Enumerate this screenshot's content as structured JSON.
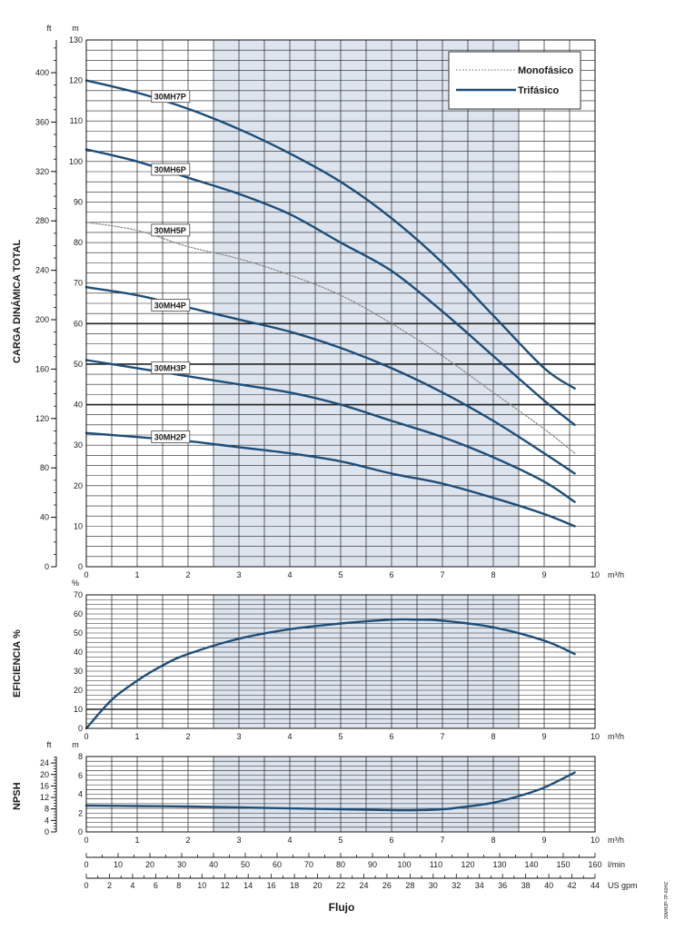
{
  "chart_data": [
    {
      "type": "line",
      "panel": "head",
      "ylabel": "CARGA DINÁMICA TOTAL",
      "y_unit_m": "m",
      "y_unit_ft": "ft",
      "x_unit": "m³/h",
      "xlim": [
        0,
        10
      ],
      "ylim": [
        0,
        130
      ],
      "x_ticks": [
        "0",
        "1",
        "2",
        "3",
        "4",
        "5",
        "6",
        "7",
        "8",
        "9",
        "10"
      ],
      "y_ticks_m": [
        "0",
        "10",
        "20",
        "30",
        "40",
        "50",
        "60",
        "70",
        "80",
        "90",
        "100",
        "110",
        "120",
        "130"
      ],
      "y_ticks_ft": [
        "0",
        "40",
        "80",
        "120",
        "160",
        "200",
        "240",
        "280",
        "320",
        "360",
        "400"
      ],
      "shaded_x_range": [
        2.5,
        8.5
      ],
      "grid": true,
      "legend": {
        "position": "top-right",
        "entries": [
          {
            "label": "Monofásico",
            "style": "dotted",
            "color": "#8a8a8a"
          },
          {
            "label": "Trifásico",
            "style": "solid",
            "color": "#1d4e79"
          }
        ]
      },
      "series": [
        {
          "name": "30MH7P",
          "style": "solid",
          "label_at": [
            1.3,
            115.5
          ],
          "x": [
            0,
            1,
            2,
            3,
            4,
            5,
            6,
            7,
            8,
            9,
            9.6
          ],
          "y": [
            120,
            117,
            113,
            108,
            102,
            95,
            86,
            75,
            62,
            49,
            44
          ]
        },
        {
          "name": "30MH6P",
          "style": "solid",
          "label_at": [
            1.3,
            97.5
          ],
          "x": [
            0,
            1,
            2,
            3,
            4,
            5,
            6,
            7,
            8,
            9,
            9.6
          ],
          "y": [
            103,
            100,
            96,
            92,
            87,
            80,
            73,
            63,
            52,
            41,
            35
          ]
        },
        {
          "name": "30MH5P",
          "style": "dotted",
          "label_at": [
            1.3,
            82.5
          ],
          "x": [
            0,
            1,
            2,
            3,
            4,
            5,
            6,
            7,
            8,
            9,
            9.6
          ],
          "y": [
            85,
            83,
            79,
            76,
            72,
            67,
            60,
            52,
            43,
            34,
            28
          ]
        },
        {
          "name": "30MH4P",
          "style": "solid",
          "label_at": [
            1.3,
            64
          ],
          "x": [
            0,
            1,
            2,
            3,
            4,
            5,
            6,
            7,
            8,
            9,
            9.6
          ],
          "y": [
            69,
            67,
            64,
            61,
            58,
            54,
            49,
            43,
            36,
            28,
            23
          ]
        },
        {
          "name": "30MH3P",
          "style": "solid",
          "label_at": [
            1.3,
            48.5
          ],
          "x": [
            0,
            1,
            2,
            3,
            4,
            5,
            6,
            7,
            8,
            9,
            9.6
          ],
          "y": [
            51,
            49,
            47,
            45,
            43,
            40,
            36,
            32,
            27,
            21,
            16
          ]
        },
        {
          "name": "30MH2P",
          "style": "solid",
          "label_at": [
            1.3,
            31.5
          ],
          "x": [
            0,
            1,
            2,
            3,
            4,
            5,
            6,
            7,
            8,
            9,
            9.6
          ],
          "y": [
            33,
            32,
            31,
            29.5,
            28,
            26,
            23,
            20.5,
            17,
            13,
            10
          ]
        }
      ]
    },
    {
      "type": "line",
      "panel": "efficiency",
      "ylabel": "EFICIENCIA %",
      "y_unit": "%",
      "x_unit": "m³/h",
      "xlim": [
        0,
        10
      ],
      "ylim": [
        0,
        70
      ],
      "x_ticks": [
        "0",
        "1",
        "2",
        "3",
        "4",
        "5",
        "6",
        "7",
        "8",
        "9",
        "10"
      ],
      "y_ticks": [
        "0",
        "10",
        "20",
        "30",
        "40",
        "50",
        "60",
        "70"
      ],
      "shaded_x_range": [
        2.5,
        8.5
      ],
      "grid": true,
      "series": [
        {
          "style": "solid",
          "x": [
            0,
            0.5,
            1,
            1.5,
            2,
            3,
            4,
            5,
            6,
            6.5,
            7,
            8,
            9,
            9.6
          ],
          "y": [
            0,
            15,
            25,
            33,
            39,
            47,
            52,
            55,
            57,
            57,
            56.5,
            53,
            46,
            39
          ]
        }
      ]
    },
    {
      "type": "line",
      "panel": "npsh",
      "ylabel": "NPSH",
      "y_unit_m": "m",
      "y_unit_ft": "ft",
      "x_unit": "m³/h",
      "xlim": [
        0,
        10
      ],
      "ylim": [
        0,
        8
      ],
      "x_ticks": [
        "0",
        "1",
        "2",
        "3",
        "4",
        "5",
        "6",
        "7",
        "8",
        "9",
        "10"
      ],
      "y_ticks_m": [
        "0",
        "2",
        "4",
        "6",
        "8"
      ],
      "y_ticks_ft": [
        "0",
        "4",
        "8",
        "12",
        "16",
        "20",
        "24"
      ],
      "shaded_x_range": [
        2.5,
        8.5
      ],
      "grid": true,
      "series": [
        {
          "style": "solid",
          "x": [
            0,
            1,
            2,
            3,
            4,
            5,
            6,
            6.5,
            7,
            7.5,
            8,
            8.5,
            9,
            9.6
          ],
          "y": [
            2.8,
            2.75,
            2.7,
            2.6,
            2.5,
            2.4,
            2.3,
            2.3,
            2.4,
            2.7,
            3.1,
            3.8,
            4.7,
            6.3
          ]
        }
      ]
    }
  ],
  "flow_scales": {
    "title": "Flujo",
    "m3h": {
      "unit": "m³/h",
      "max": 10,
      "ticks": [
        "0",
        "1",
        "2",
        "3",
        "4",
        "5",
        "6",
        "7",
        "8",
        "9",
        "10"
      ]
    },
    "lmin": {
      "unit": "l/min",
      "max": 160,
      "ticks": [
        "0",
        "10",
        "20",
        "30",
        "40",
        "50",
        "60",
        "70",
        "80",
        "90",
        "100",
        "110",
        "120",
        "130",
        "140",
        "150",
        "160"
      ]
    },
    "usgpm": {
      "unit": "US gpm",
      "max": 44,
      "ticks": [
        "0",
        "2",
        "4",
        "6",
        "8",
        "10",
        "12",
        "14",
        "16",
        "18",
        "20",
        "22",
        "24",
        "26",
        "28",
        "30",
        "32",
        "34",
        "36",
        "38",
        "40",
        "42",
        "44"
      ]
    }
  },
  "colors": {
    "curve": "#1d4e79",
    "dotted_curve": "#8a8a8a",
    "shade": "#dde4ee",
    "grid": "#222222"
  },
  "side_code": "30MH2P-7P-60HZ"
}
